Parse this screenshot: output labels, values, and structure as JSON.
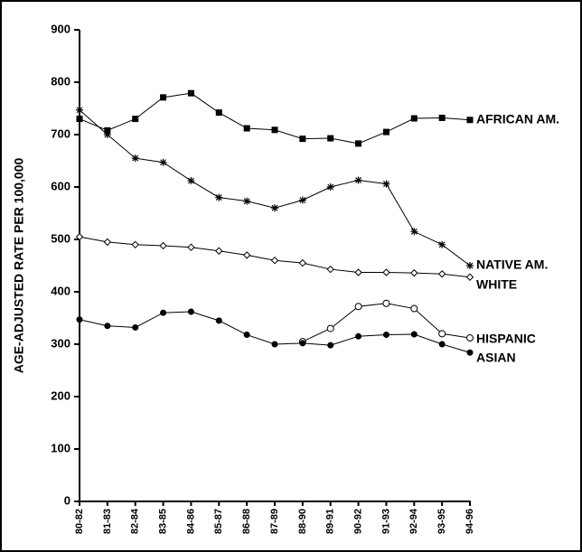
{
  "chart_data": {
    "type": "line",
    "y_label": "AGE-ADJUSTED RATE PER 100,000",
    "categories": [
      "80-82",
      "81-83",
      "82-84",
      "83-85",
      "84-86",
      "85-87",
      "86-88",
      "87-89",
      "88-90",
      "89-91",
      "90-92",
      "91-93",
      "92-94",
      "93-95",
      "94-96"
    ],
    "ylim": [
      0,
      900
    ],
    "yticks": [
      0,
      100,
      200,
      300,
      400,
      500,
      600,
      700,
      800,
      900
    ],
    "series": [
      {
        "name": "AFRICAN AM.",
        "color": "#000000",
        "marker": "square",
        "values": [
          730,
          708,
          730,
          771,
          779,
          742,
          712,
          709,
          692,
          693,
          683,
          705,
          731,
          732,
          728
        ]
      },
      {
        "name": "NATIVE AM.",
        "color": "#000000",
        "marker": "asterisk",
        "values": [
          747,
          700,
          655,
          647,
          612,
          580,
          573,
          560,
          575,
          600,
          613,
          606,
          515,
          490,
          450
        ]
      },
      {
        "name": "WHITE",
        "color": "#000000",
        "marker": "diamond",
        "values": [
          505,
          495,
          490,
          488,
          485,
          478,
          470,
          460,
          455,
          443,
          437,
          437,
          436,
          434,
          428
        ]
      },
      {
        "name": "HISPANIC",
        "color": "#000000",
        "marker": "open-circle",
        "values": [
          null,
          null,
          null,
          null,
          null,
          null,
          null,
          null,
          305,
          330,
          372,
          378,
          368,
          320,
          312
        ]
      },
      {
        "name": "ASIAN",
        "color": "#000000",
        "marker": "filled-circle",
        "values": [
          347,
          335,
          332,
          360,
          362,
          345,
          318,
          300,
          302,
          298,
          315,
          318,
          319,
          300,
          284
        ]
      }
    ]
  }
}
